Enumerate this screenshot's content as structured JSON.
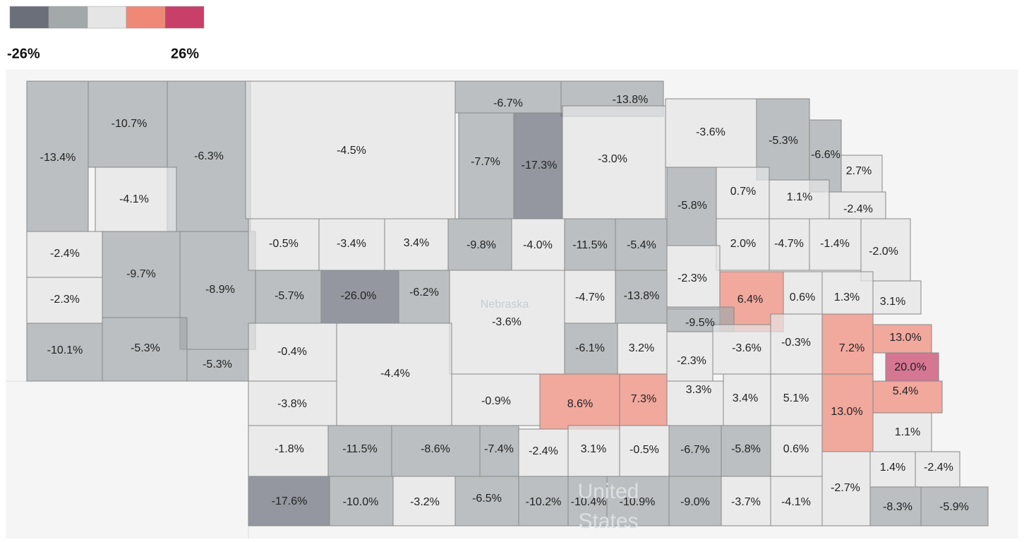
{
  "legend": {
    "colors": [
      "#6b6f7a",
      "#a3a8ab",
      "#e5e5e5",
      "#f08878",
      "#c8406a"
    ],
    "min_label": "-26%",
    "max_label": "26%"
  },
  "map_labels": [
    "Nebraska",
    "United",
    "States"
  ],
  "counties": [
    "-13.4%",
    "-10.7%",
    "-6.3%",
    "-4.1%",
    "-4.5%",
    "-6.7%",
    "-13.8%",
    "-7.7%",
    "-17.3%",
    "-3.0%",
    "-3.6%",
    "-5.3%",
    "-6.6%",
    "2.7%",
    "-5.8%",
    "0.7%",
    "1.1%",
    "-2.4%",
    "-2.4%",
    "-9.7%",
    "-8.9%",
    "-0.5%",
    "-3.4%",
    "3.4%",
    "-9.8%",
    "-4.0%",
    "-11.5%",
    "-5.4%",
    "2.0%",
    "-4.7%",
    "-1.4%",
    "-2.0%",
    "-2.3%",
    "-5.7%",
    "-26.0%",
    "-6.2%",
    "-3.6%",
    "-4.7%",
    "-13.8%",
    "-2.3%",
    "6.4%",
    "0.6%",
    "1.3%",
    "3.1%",
    "-9.5%",
    "-10.1%",
    "-5.3%",
    "-5.3%",
    "-0.4%",
    "-4.4%",
    "-6.1%",
    "3.2%",
    "-2.3%",
    "-3.6%",
    "-0.3%",
    "7.2%",
    "13.0%",
    "20.0%",
    "5.4%",
    "-3.8%",
    "-0.9%",
    "8.6%",
    "7.3%",
    "3.3%",
    "3.4%",
    "5.1%",
    "13.0%",
    "1.1%",
    "-1.8%",
    "-11.5%",
    "-8.6%",
    "-7.4%",
    "-2.4%",
    "3.1%",
    "-0.5%",
    "-6.7%",
    "-5.8%",
    "0.6%",
    "-2.7%",
    "1.4%",
    "-2.4%",
    "-17.6%",
    "-10.0%",
    "-3.2%",
    "-6.5%",
    "-10.2%",
    "-10.4%",
    "-10.9%",
    "-9.0%",
    "-3.7%",
    "-4.1%",
    "-8.3%",
    "-5.9%"
  ]
}
